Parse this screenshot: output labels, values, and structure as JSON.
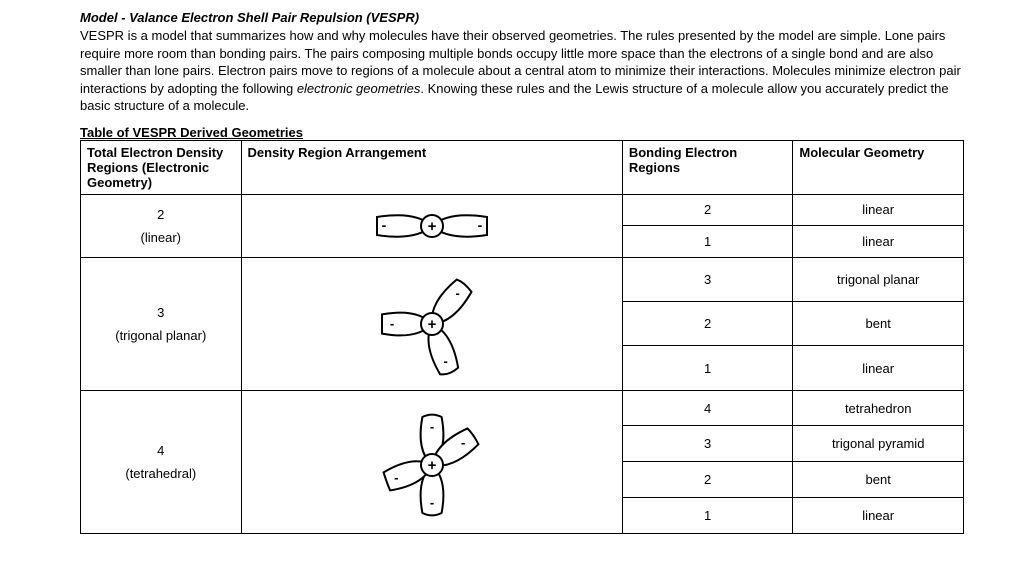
{
  "title": "Model - Valance Electron Shell Pair Repulsion (VESPR)",
  "description": "VESPR is a model that summarizes how and why molecules have their observed geometries. The rules presented by the model are simple. Lone pairs require more room than bonding pairs. The pairs composing multiple bonds occupy little more space than the electrons of a single bond and are also smaller than lone pairs. Electron pairs move to regions of a molecule about a central atom to minimize their interactions. Molecules minimize electron pair interactions by adopting the following electronic geometries. Knowing these rules and the Lewis structure of a molecule allow you accurately predict the basic structure of a molecule.",
  "italic_phrase": "electronic geometries",
  "table_caption": "Table of VESPR Derived Geometries",
  "headers": {
    "col1": "Total Electron Density Regions (Electronic Geometry)",
    "col2": "Density Region Arrangement",
    "col3": "Bonding Electron Regions",
    "col4": "Molecular Geometry"
  },
  "groups": [
    {
      "total_label_num": "2",
      "total_label_name": "(linear)",
      "diagram": "linear",
      "rows": [
        {
          "bonding": "2",
          "geom": "linear"
        },
        {
          "bonding": "1",
          "geom": "linear"
        }
      ]
    },
    {
      "total_label_num": "3",
      "total_label_name": "(trigonal planar)",
      "diagram": "trigonal",
      "rows": [
        {
          "bonding": "3",
          "geom": "trigonal planar"
        },
        {
          "bonding": "2",
          "geom": "bent"
        },
        {
          "bonding": "1",
          "geom": "linear"
        }
      ]
    },
    {
      "total_label_num": "4",
      "total_label_name": "(tetrahedral)",
      "diagram": "tetrahedral",
      "rows": [
        {
          "bonding": "4",
          "geom": "tetrahedron"
        },
        {
          "bonding": "3",
          "geom": "trigonal pyramid"
        },
        {
          "bonding": "2",
          "geom": "bent"
        },
        {
          "bonding": "1",
          "geom": "linear"
        }
      ]
    }
  ],
  "colors": {
    "stroke": "#000000",
    "fill": "#ffffff",
    "text": "#000000"
  },
  "stroke_width": 2
}
